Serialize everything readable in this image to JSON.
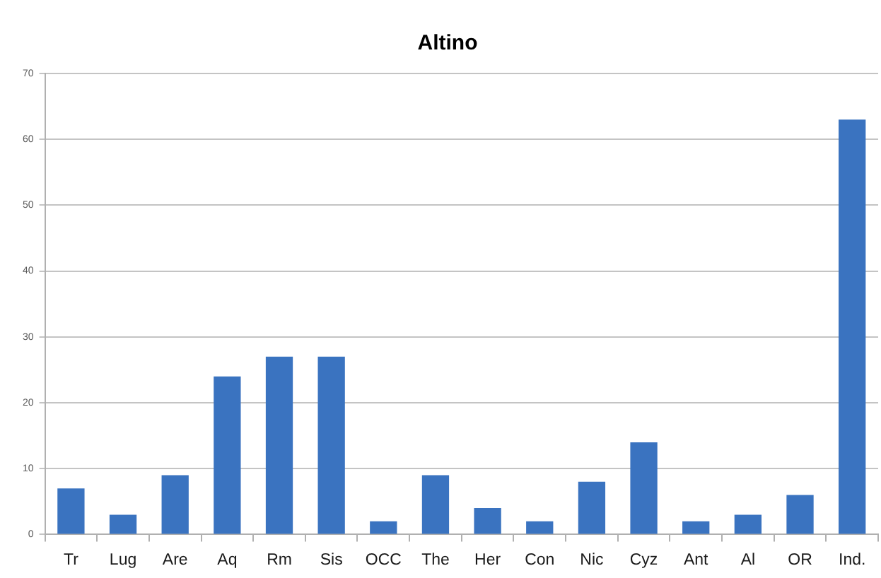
{
  "chart_data": {
    "type": "bar",
    "title": "Altino",
    "categories": [
      "Tr",
      "Lug",
      "Are",
      "Aq",
      "Rm",
      "Sis",
      "OCC",
      "The",
      "Her",
      "Con",
      "Nic",
      "Cyz",
      "Ant",
      "Al",
      "OR",
      "Ind."
    ],
    "values": [
      7,
      3,
      9,
      24,
      27,
      27,
      2,
      9,
      4,
      2,
      8,
      14,
      2,
      3,
      6,
      63
    ],
    "color": "#3a73c0",
    "ylim": [
      0,
      70
    ],
    "yticks": [
      0,
      10,
      20,
      30,
      40,
      50,
      60,
      70
    ],
    "grid": "y"
  }
}
